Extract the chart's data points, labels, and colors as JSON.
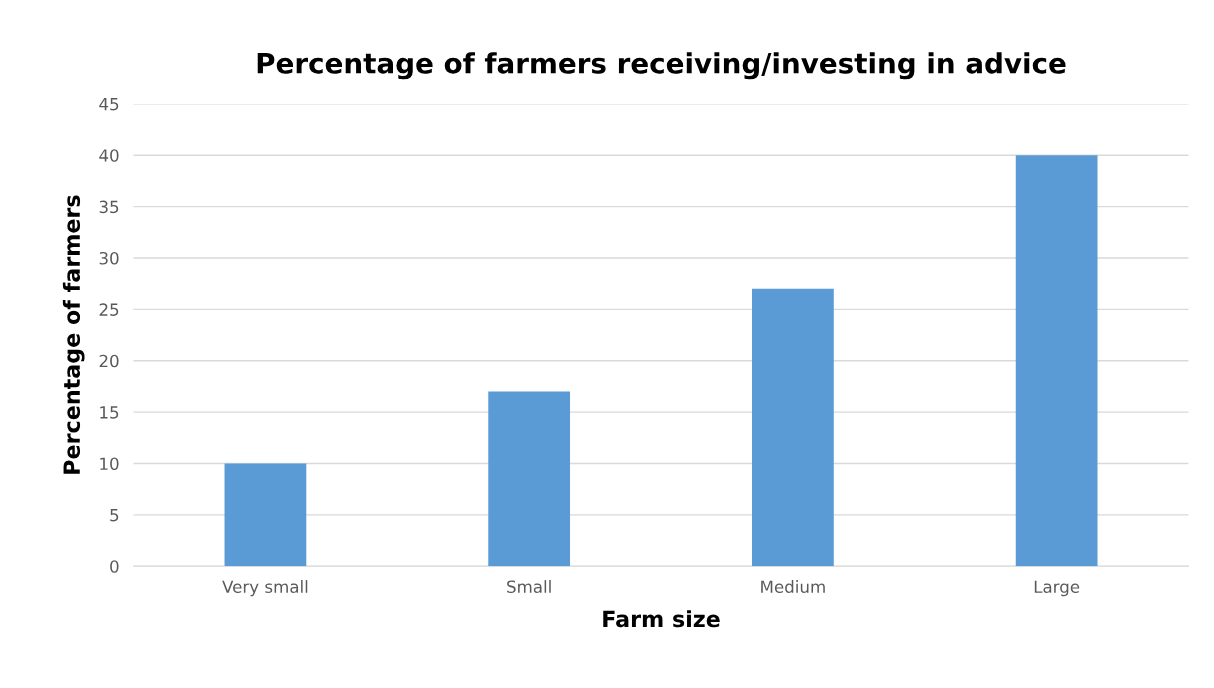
{
  "chart_data": {
    "type": "bar",
    "title": "Percentage of farmers receiving/investing in advice",
    "xlabel": "Farm size",
    "ylabel": "Percentage of farmers",
    "categories": [
      "Very small",
      "Small",
      "Medium",
      "Large"
    ],
    "values": [
      10,
      17,
      27,
      40
    ],
    "color": "#5b9bd5",
    "ylim": [
      0,
      45
    ],
    "yticks": [
      0,
      5,
      10,
      15,
      20,
      25,
      30,
      35,
      40,
      45
    ],
    "grid": "y",
    "legend": false
  }
}
